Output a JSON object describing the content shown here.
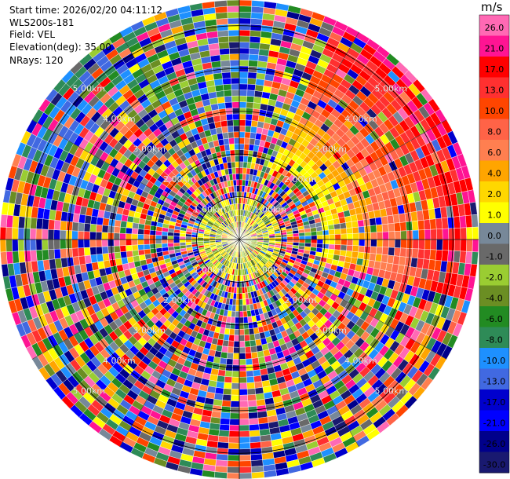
{
  "header": {
    "start_time": "Start time: 2026/02/20 04:11:12",
    "instrument": "WLS200s-181",
    "field": "Field: VEL",
    "elevation": "Elevation(deg): 35.00",
    "nrays": "NRays: 120"
  },
  "chart_data": {
    "type": "ppi",
    "field": "VEL",
    "units": "m/s",
    "range_rings_km": [
      1,
      2,
      3,
      4,
      5
    ],
    "range_ring_labels": [
      "1.00km",
      "2.00km",
      "3.00km",
      "4.00km",
      "5.00km"
    ],
    "colorbar": {
      "unit_label": "m/s",
      "ticks": [
        "26.0",
        "21.0",
        "17.0",
        "13.0",
        "10.0",
        "8.0",
        "6.0",
        "4.0",
        "2.0",
        "1.0",
        "0.0",
        "-1.0",
        "-2.0",
        "-4.0",
        "-6.0",
        "-8.0",
        "-10.0",
        "-13.0",
        "-17.0",
        "-21.0",
        "-26.0",
        "-30.0"
      ],
      "colors": [
        "#ff69b4",
        "#ff1493",
        "#ff0000",
        "#ff3030",
        "#ff4500",
        "#ff6347",
        "#ff7f50",
        "#ffa500",
        "#ffd700",
        "#ffff00",
        "#778899",
        "#696969",
        "#9acd32",
        "#6b8e23",
        "#228b22",
        "#2e8b57",
        "#1e90ff",
        "#4169e1",
        "#0000cd",
        "#0000ff",
        "#00008b",
        "#191970"
      ]
    },
    "regions": [
      {
        "sector": "north-northeast to east",
        "dominant": "yellow to red",
        "approx_ms": [
          4,
          21
        ]
      },
      {
        "sector": "north-northwest",
        "dominant": "green and blue",
        "approx_ms": [
          -10,
          -1
        ]
      },
      {
        "sector": "center",
        "dominant": "yellow-green",
        "approx_ms": [
          -2,
          2
        ]
      }
    ]
  }
}
